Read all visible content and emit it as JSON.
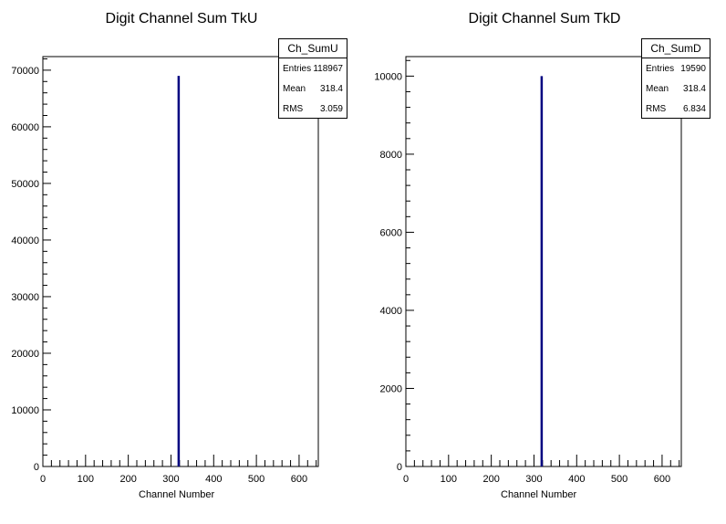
{
  "pads": [
    {
      "title": "Digit Channel Sum TkU",
      "stats": {
        "name": "Ch_SumU",
        "entries_label": "Entries",
        "entries": "118967",
        "mean_label": "Mean",
        "mean": "318.4",
        "rms_label": "RMS",
        "rms": "3.059"
      },
      "xlabel": "Channel Number"
    },
    {
      "title": "Digit Channel Sum TkD",
      "stats": {
        "name": "Ch_SumD",
        "entries_label": "Entries",
        "entries": "19590",
        "mean_label": "Mean",
        "mean": "318.4",
        "rms_label": "RMS",
        "rms": "6.834"
      },
      "xlabel": "Channel Number"
    }
  ],
  "chart_data": [
    {
      "type": "bar",
      "title": "Digit Channel Sum TkU",
      "xlabel": "Channel Number",
      "ylabel": "",
      "xlim": [
        0,
        645
      ],
      "ylim": [
        0,
        72400
      ],
      "xticks": [
        0,
        100,
        200,
        300,
        400,
        500,
        600
      ],
      "yticks": [
        0,
        10000,
        20000,
        30000,
        40000,
        50000,
        60000,
        70000
      ],
      "bins": [
        {
          "x": 318,
          "value": 69000
        }
      ],
      "color": "#000080"
    },
    {
      "type": "bar",
      "title": "Digit Channel Sum TkD",
      "xlabel": "Channel Number",
      "ylabel": "",
      "xlim": [
        0,
        645
      ],
      "ylim": [
        0,
        10500
      ],
      "xticks": [
        0,
        100,
        200,
        300,
        400,
        500,
        600
      ],
      "yticks": [
        0,
        2000,
        4000,
        6000,
        8000,
        10000
      ],
      "bins": [
        {
          "x": 318,
          "value": 10000
        }
      ],
      "color": "#000080"
    }
  ]
}
